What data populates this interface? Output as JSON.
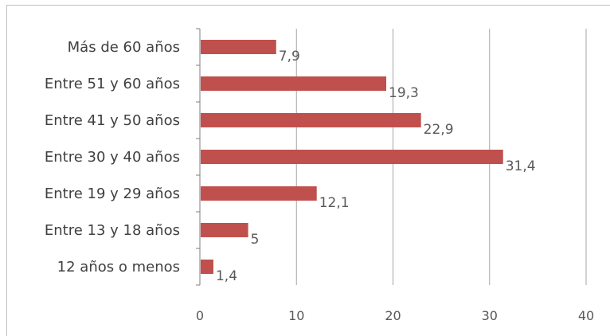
{
  "chart_data": {
    "type": "bar",
    "orientation": "horizontal",
    "categories": [
      "Más de 60 años",
      "Entre 51 y 60 años",
      "Entre 41 y 50 años",
      "Entre 30 y 40 años",
      "Entre 19 y 29 años",
      "Entre 13 y 18 años",
      "12 años o menos"
    ],
    "values": [
      7.9,
      19.3,
      22.9,
      31.4,
      12.1,
      5,
      1.4
    ],
    "data_labels": [
      "7,9",
      "19,3",
      "22,9",
      "31,4",
      "12,1",
      "5",
      "1,4"
    ],
    "xlim": [
      0,
      40
    ],
    "xticks": [
      0,
      10,
      20,
      30,
      40
    ],
    "xtick_labels": [
      "0",
      "10",
      "20",
      "30",
      "40"
    ],
    "grid": "vertical major gridlines",
    "bar_color": "#c0504d",
    "title": "",
    "xlabel": "",
    "ylabel": ""
  }
}
